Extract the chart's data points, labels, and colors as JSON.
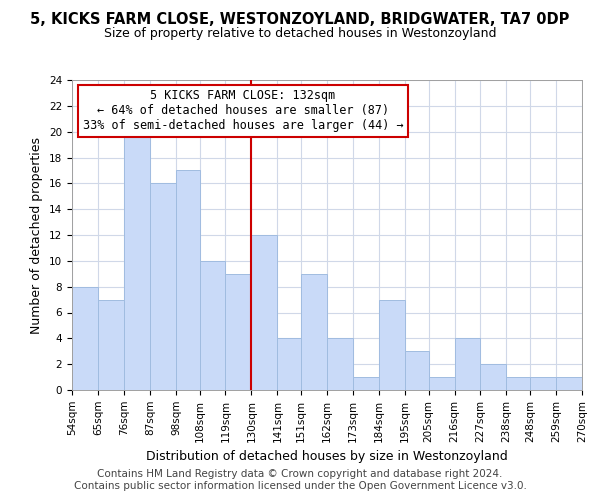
{
  "title": "5, KICKS FARM CLOSE, WESTONZOYLAND, BRIDGWATER, TA7 0DP",
  "subtitle": "Size of property relative to detached houses in Westonzoyland",
  "xlabel": "Distribution of detached houses by size in Westonzoyland",
  "ylabel": "Number of detached properties",
  "bin_edges": [
    54,
    65,
    76,
    87,
    98,
    108,
    119,
    130,
    141,
    151,
    162,
    173,
    184,
    195,
    205,
    216,
    227,
    238,
    248,
    259,
    270
  ],
  "counts": [
    8,
    7,
    20,
    16,
    17,
    10,
    9,
    12,
    4,
    9,
    4,
    1,
    7,
    3,
    1,
    4,
    2,
    1,
    1,
    1
  ],
  "bar_color": "#c9daf8",
  "bar_edge_color": "#a0bce0",
  "reference_line_x": 130,
  "reference_line_color": "#cc0000",
  "annotation_line1": "5 KICKS FARM CLOSE: 132sqm",
  "annotation_line2": "← 64% of detached houses are smaller (87)",
  "annotation_line3": "33% of semi-detached houses are larger (44) →",
  "annotation_box_edge_color": "#cc0000",
  "annotation_box_face_color": "#ffffff",
  "ylim": [
    0,
    24
  ],
  "yticks": [
    0,
    2,
    4,
    6,
    8,
    10,
    12,
    14,
    16,
    18,
    20,
    22,
    24
  ],
  "tick_labels": [
    "54sqm",
    "65sqm",
    "76sqm",
    "87sqm",
    "98sqm",
    "108sqm",
    "119sqm",
    "130sqm",
    "141sqm",
    "151sqm",
    "162sqm",
    "173sqm",
    "184sqm",
    "195sqm",
    "205sqm",
    "216sqm",
    "227sqm",
    "238sqm",
    "248sqm",
    "259sqm",
    "270sqm"
  ],
  "footer_line1": "Contains HM Land Registry data © Crown copyright and database right 2024.",
  "footer_line2": "Contains public sector information licensed under the Open Government Licence v3.0.",
  "background_color": "#ffffff",
  "grid_color": "#d0d8e8",
  "title_fontsize": 10.5,
  "subtitle_fontsize": 9,
  "axis_label_fontsize": 9,
  "tick_fontsize": 7.5,
  "annotation_fontsize": 8.5,
  "footer_fontsize": 7.5
}
